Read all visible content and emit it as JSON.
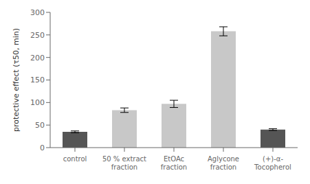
{
  "chart_data": {
    "type": "bar",
    "categories": [
      "control",
      "50 % extract\nfraction",
      "EtOAc\nfraction",
      "Aglycone\nfraction",
      "(+)-α-\nTocopherol"
    ],
    "values": [
      35,
      83,
      97,
      258,
      40
    ],
    "errors": [
      2,
      5,
      8,
      10,
      2
    ],
    "colors": [
      "#555555",
      "#c8c8c8",
      "#c8c8c8",
      "#c8c8c8",
      "#555555"
    ],
    "ylabel": "protective effect (τ50, min)",
    "ylim": [
      0,
      300
    ],
    "yticks": [
      0,
      50,
      100,
      150,
      200,
      250,
      300
    ],
    "grid": false
  }
}
